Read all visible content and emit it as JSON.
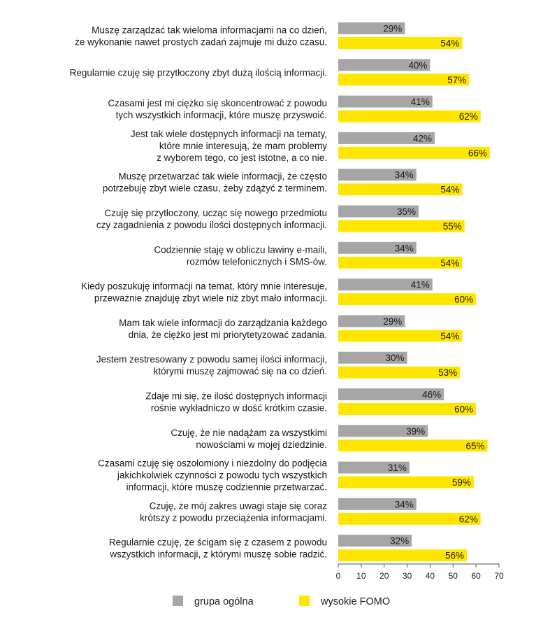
{
  "chart_data": {
    "type": "bar",
    "orientation": "horizontal",
    "title": "",
    "xlabel": "",
    "ylabel": "",
    "xlim": [
      0,
      70
    ],
    "xticks": [
      "0",
      "10",
      "20",
      "30",
      "40",
      "50",
      "60",
      "70"
    ],
    "grid": false,
    "legend_position": "bottom",
    "categories": [
      [
        "Muszę zarządzać tak wieloma informacjami na co dzień,",
        "że wykonanie nawet prostych zadań zajmuje mi dużo czasu."
      ],
      [
        "Regularnie czuję się przytłoczony zbyt dużą ilością informacji."
      ],
      [
        "Czasami jest mi ciężko się skoncentrować z powodu",
        "tych wszystkich informacji, które muszę przyswoić."
      ],
      [
        "Jest tak wiele dostępnych informacji na tematy,",
        "które mnie interesują, że mam problemy",
        "z wyborem tego, co jest istotne, a co nie."
      ],
      [
        "Muszę przetwarzać tak wiele informacji, że często",
        "potrzebuję zbyt wiele czasu, żeby zdążyć z terminem."
      ],
      [
        "Czuję się przytłoczony, ucząc się nowego przedmiotu",
        "czy zagadnienia z powodu ilości dostępnych informacji."
      ],
      [
        "Codziennie staję w obliczu lawiny e-maili,",
        "rozmów telefonicznych i SMS-ów."
      ],
      [
        "Kiedy poszukuję informacji na temat, który mnie interesuje,",
        "przeważnie znajduję zbyt wiele niż zbyt mało informacji."
      ],
      [
        "Mam tak wiele informacji do zarządzania każdego",
        "dnia, że ciężko jest mi priorytetyzować zadania."
      ],
      [
        "Jestem zestresowany z powodu samej ilości informacji,",
        "którymi muszę zajmować się na co dzień."
      ],
      [
        "Zdaje mi się, że ilość dostępnych informacji",
        "rośnie wykładniczo w dość krótkim czasie."
      ],
      [
        "Czuję, że nie nadążam za wszystkimi",
        "nowościami w mojej dziedzinie."
      ],
      [
        "Czasami czuję się oszołomiony i niezdolny do podjęcia",
        "jakichkolwiek czynności z powodu tych wszystkich",
        "informacji, które muszę codziennie przetwarzać."
      ],
      [
        "Czuję, że mój zakres uwagi staje się coraz",
        "krótszy z powodu przeciążenia informacjami."
      ],
      [
        "Regularnie czuję, że ścigam się z czasem z powodu",
        "wszystkich informacji, z którymi muszę sobie radzić."
      ]
    ],
    "series": [
      {
        "name": "grupa ogólna",
        "color": "#a6a6a6",
        "values": [
          29,
          40,
          41,
          42,
          34,
          35,
          34,
          41,
          29,
          30,
          46,
          39,
          31,
          34,
          32
        ],
        "labels": [
          "29%",
          "40%",
          "41%",
          "42%",
          "34%",
          "35%",
          "34%",
          "41%",
          "29%",
          "30%",
          "46%",
          "39%",
          "31%",
          "34%",
          "32%"
        ]
      },
      {
        "name": "wysokie FOMO",
        "color": "#ffe600",
        "values": [
          54,
          57,
          62,
          66,
          54,
          55,
          54,
          60,
          54,
          53,
          60,
          65,
          59,
          62,
          56
        ],
        "labels": [
          "54%",
          "57%",
          "62%",
          "66%",
          "54%",
          "55%",
          "54%",
          "60%",
          "54%",
          "53%",
          "60%",
          "65%",
          "59%",
          "62%",
          "56%"
        ]
      }
    ]
  }
}
